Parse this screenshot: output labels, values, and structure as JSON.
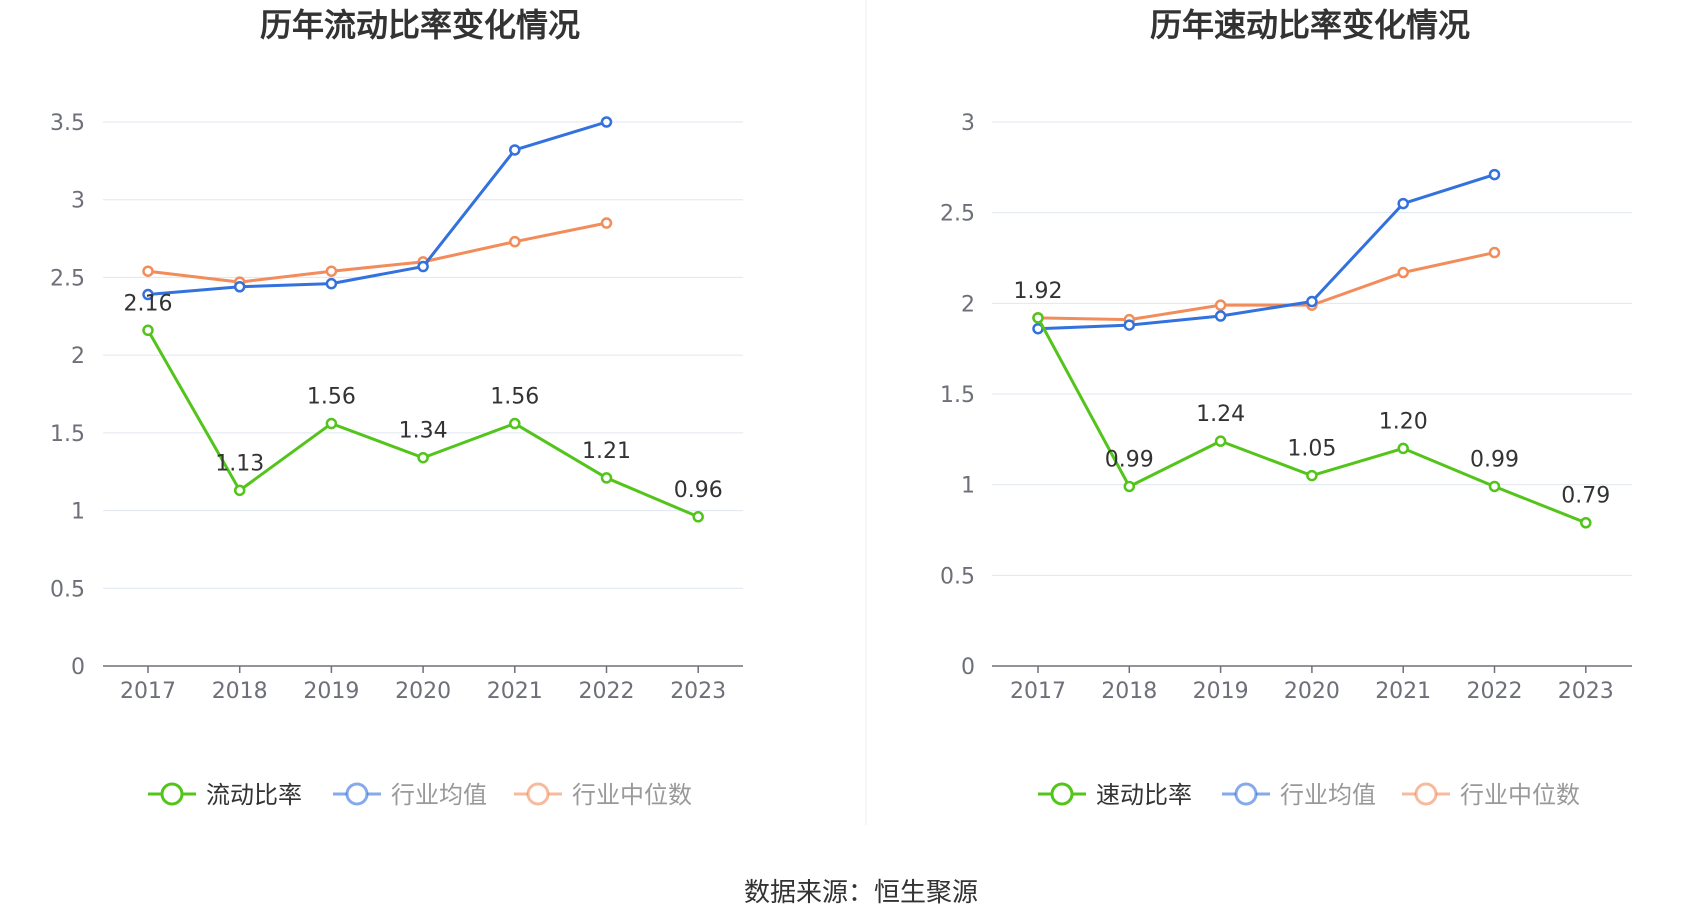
{
  "source_text": "数据来源：恒生聚源",
  "colors": {
    "green": "#52c41a",
    "blue": "#3271de",
    "orange": "#f28c5a",
    "grid": "#e0e6f1",
    "axis": "#6e7079"
  },
  "chart_data": [
    {
      "type": "line",
      "title": "历年流动比率变化情况",
      "categories": [
        "2017",
        "2018",
        "2019",
        "2020",
        "2021",
        "2022",
        "2023"
      ],
      "ylim": [
        0,
        3.5
      ],
      "yticks": [
        0,
        0.5,
        1,
        1.5,
        2,
        2.5,
        3,
        3.5
      ],
      "ytick_labels": [
        "0",
        "0.5",
        "1",
        "1.5",
        "2",
        "2.5",
        "3",
        "3.5"
      ],
      "grid": true,
      "legend_position": "bottom",
      "series": [
        {
          "name": "流动比率",
          "color": "#52c41a",
          "values": [
            2.16,
            1.13,
            1.56,
            1.34,
            1.56,
            1.21,
            0.96
          ],
          "labels": [
            "2.16",
            "1.13",
            "1.56",
            "1.34",
            "1.56",
            "1.21",
            "0.96"
          ]
        },
        {
          "name": "行业均值",
          "color": "#3271de",
          "values": [
            2.39,
            2.44,
            2.46,
            2.57,
            3.32,
            3.5,
            null
          ]
        },
        {
          "name": "行业中位数",
          "color": "#f28c5a",
          "values": [
            2.54,
            2.47,
            2.54,
            2.6,
            2.73,
            2.85,
            null
          ]
        }
      ]
    },
    {
      "type": "line",
      "title": "历年速动比率变化情况",
      "categories": [
        "2017",
        "2018",
        "2019",
        "2020",
        "2021",
        "2022",
        "2023"
      ],
      "ylim": [
        0,
        3
      ],
      "yticks": [
        0,
        0.5,
        1,
        1.5,
        2,
        2.5,
        3
      ],
      "ytick_labels": [
        "0",
        "0.5",
        "1",
        "1.5",
        "2",
        "2.5",
        "3"
      ],
      "grid": true,
      "legend_position": "bottom",
      "series": [
        {
          "name": "速动比率",
          "color": "#52c41a",
          "values": [
            1.92,
            0.99,
            1.24,
            1.05,
            1.2,
            0.99,
            0.79
          ],
          "labels": [
            "1.92",
            "0.99",
            "1.24",
            "1.05",
            "1.20",
            "0.99",
            "0.79"
          ]
        },
        {
          "name": "行业均值",
          "color": "#3271de",
          "values": [
            1.86,
            1.88,
            1.93,
            2.01,
            2.55,
            2.71,
            null
          ]
        },
        {
          "name": "行业中位数",
          "color": "#f28c5a",
          "values": [
            1.92,
            1.91,
            1.99,
            1.99,
            2.17,
            2.28,
            null
          ]
        }
      ]
    }
  ]
}
